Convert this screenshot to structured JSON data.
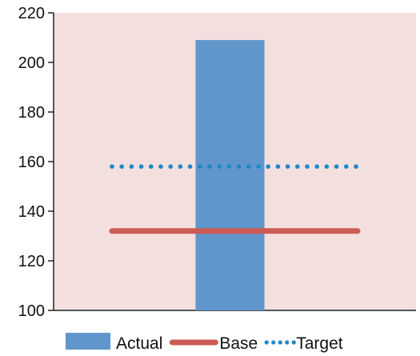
{
  "chart_data": {
    "type": "bar",
    "categories": [
      ""
    ],
    "ylim": [
      100,
      220
    ],
    "yticks": [
      100,
      120,
      140,
      160,
      180,
      200,
      220
    ],
    "grid": false,
    "legend_position": "bottom",
    "series": [
      {
        "name": "Actual",
        "kind": "bar",
        "values": [
          209
        ],
        "color": "#6096CB"
      },
      {
        "name": "Base",
        "kind": "line",
        "style": "solid",
        "values": [
          132
        ],
        "color": "#CD5B55"
      },
      {
        "name": "Target",
        "kind": "line",
        "style": "dotted",
        "values": [
          158
        ],
        "color": "#1E88C6"
      }
    ],
    "plot_background": "#F4DFDF"
  }
}
